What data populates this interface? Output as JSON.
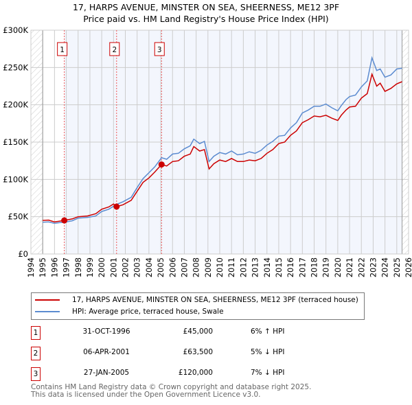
{
  "chart_data": {
    "type": "line",
    "title": "17, HARPS AVENUE, MINSTER ON SEA, SHEERNESS, ME12 3PF",
    "subtitle": "Price paid vs. HM Land Registry's House Price Index (HPI)",
    "xlim": [
      1994,
      2026
    ],
    "ylim": [
      0,
      300000
    ],
    "yticks": [
      {
        "v": 0,
        "label": "£0"
      },
      {
        "v": 50000,
        "label": "£50K"
      },
      {
        "v": 100000,
        "label": "£100K"
      },
      {
        "v": 150000,
        "label": "£150K"
      },
      {
        "v": 200000,
        "label": "£200K"
      },
      {
        "v": 250000,
        "label": "£250K"
      },
      {
        "v": 300000,
        "label": "£300K"
      }
    ],
    "xticks": [
      "1994",
      "1995",
      "1996",
      "1997",
      "1998",
      "1999",
      "2000",
      "2001",
      "2002",
      "2003",
      "2004",
      "2005",
      "2006",
      "2007",
      "2008",
      "2009",
      "2010",
      "2011",
      "2012",
      "2013",
      "2014",
      "2015",
      "2016",
      "2017",
      "2018",
      "2019",
      "2020",
      "2021",
      "2022",
      "2023",
      "2024",
      "2025",
      "2026"
    ],
    "data_range": [
      1995,
      2025.45
    ],
    "series": [
      {
        "name": "17, HARPS AVENUE, MINSTER ON SEA, SHEERNESS, ME12 3PF (terraced house)",
        "color": "#cc0000",
        "x": [
          1995,
          1995.5,
          1996,
          1996.4,
          1996.83,
          1997.5,
          1998,
          1998.8,
          1999.5,
          2000,
          2000.6,
          2001,
          2001.26,
          2001.8,
          2002.5,
          2003,
          2003.5,
          2004,
          2004.5,
          2005.07,
          2005.5,
          2006,
          2006.5,
          2007,
          2007.5,
          2007.8,
          2008.3,
          2008.7,
          2009.1,
          2009.5,
          2010,
          2010.5,
          2011,
          2011.5,
          2012,
          2012.5,
          2013,
          2013.5,
          2014,
          2014.5,
          2015,
          2015.5,
          2016,
          2016.5,
          2017,
          2017.5,
          2018,
          2018.5,
          2019,
          2019.5,
          2020,
          2020.3,
          2020.7,
          2021,
          2021.5,
          2022,
          2022.5,
          2022.9,
          2023.3,
          2023.6,
          2024,
          2024.5,
          2025,
          2025.45
        ],
        "y": [
          45000,
          45500,
          43000,
          44000,
          45000,
          47000,
          50000,
          51000,
          54000,
          60000,
          63000,
          67000,
          63500,
          66000,
          72000,
          84000,
          96000,
          102000,
          110000,
          120000,
          118000,
          124000,
          125000,
          131000,
          134000,
          144000,
          138000,
          140000,
          114000,
          121000,
          126000,
          124000,
          128000,
          124000,
          124000,
          126000,
          125000,
          128000,
          135000,
          140000,
          148000,
          150000,
          159000,
          165000,
          176000,
          180000,
          185000,
          184000,
          186000,
          182000,
          179000,
          186000,
          193000,
          197000,
          198000,
          209000,
          215000,
          241000,
          225000,
          229000,
          218000,
          222000,
          228000,
          231000
        ]
      },
      {
        "name": "HPI: Average price, terraced house, Swale",
        "color": "#5b8bd0",
        "x": [
          1995,
          1995.5,
          1996,
          1996.4,
          1996.83,
          1997.5,
          1998,
          1998.8,
          1999.5,
          2000,
          2000.6,
          2001,
          2001.26,
          2001.8,
          2002.5,
          2003,
          2003.5,
          2004,
          2004.5,
          2005.07,
          2005.5,
          2006,
          2006.5,
          2007,
          2007.5,
          2007.8,
          2008.3,
          2008.7,
          2009.1,
          2009.5,
          2010,
          2010.5,
          2011,
          2011.5,
          2012,
          2012.5,
          2013,
          2013.5,
          2014,
          2014.5,
          2015,
          2015.5,
          2016,
          2016.5,
          2017,
          2017.5,
          2018,
          2018.5,
          2019,
          2019.5,
          2020,
          2020.3,
          2020.7,
          2021,
          2021.5,
          2022,
          2022.5,
          2022.9,
          2023.3,
          2023.6,
          2024,
          2024.5,
          2025,
          2025.45
        ],
        "y": [
          42500,
          43000,
          41000,
          42000,
          42500,
          44500,
          48000,
          49000,
          51000,
          57000,
          60000,
          64000,
          66500,
          70000,
          76000,
          89000,
          101000,
          109000,
          117000,
          129000,
          127000,
          134000,
          135000,
          141000,
          145000,
          154000,
          148000,
          151000,
          124000,
          131000,
          136000,
          134000,
          138000,
          133000,
          134000,
          137000,
          135000,
          139000,
          146000,
          151000,
          158000,
          159000,
          169000,
          176000,
          189000,
          193000,
          198000,
          198000,
          201000,
          196000,
          192000,
          199000,
          207000,
          211000,
          213000,
          224000,
          232000,
          263000,
          246000,
          248000,
          237000,
          240000,
          248000,
          249000
        ]
      }
    ],
    "sales": [
      {
        "label": "1",
        "x": 1996.83,
        "price": 45000
      },
      {
        "label": "2",
        "x": 2001.26,
        "price": 63500
      },
      {
        "label": "3",
        "x": 2005.07,
        "price": 120000
      }
    ],
    "grid": true
  },
  "legend": [
    {
      "label": "17, HARPS AVENUE, MINSTER ON SEA, SHEERNESS, ME12 3PF (terraced house)",
      "color": "#cc0000"
    },
    {
      "label": "HPI: Average price, terraced house, Swale",
      "color": "#5b8bd0"
    }
  ],
  "transactions": [
    {
      "num": "1",
      "date": "31-OCT-1996",
      "price": "£45,000",
      "hpi": "6% ↑ HPI"
    },
    {
      "num": "2",
      "date": "06-APR-2001",
      "price": "£63,500",
      "hpi": "5% ↓ HPI"
    },
    {
      "num": "3",
      "date": "27-JAN-2005",
      "price": "£120,000",
      "hpi": "7% ↓ HPI"
    }
  ],
  "footer": {
    "line1": "Contains HM Land Registry data © Crown copyright and database right 2025.",
    "line2": "This data is licensed under the Open Government Licence v3.0."
  }
}
